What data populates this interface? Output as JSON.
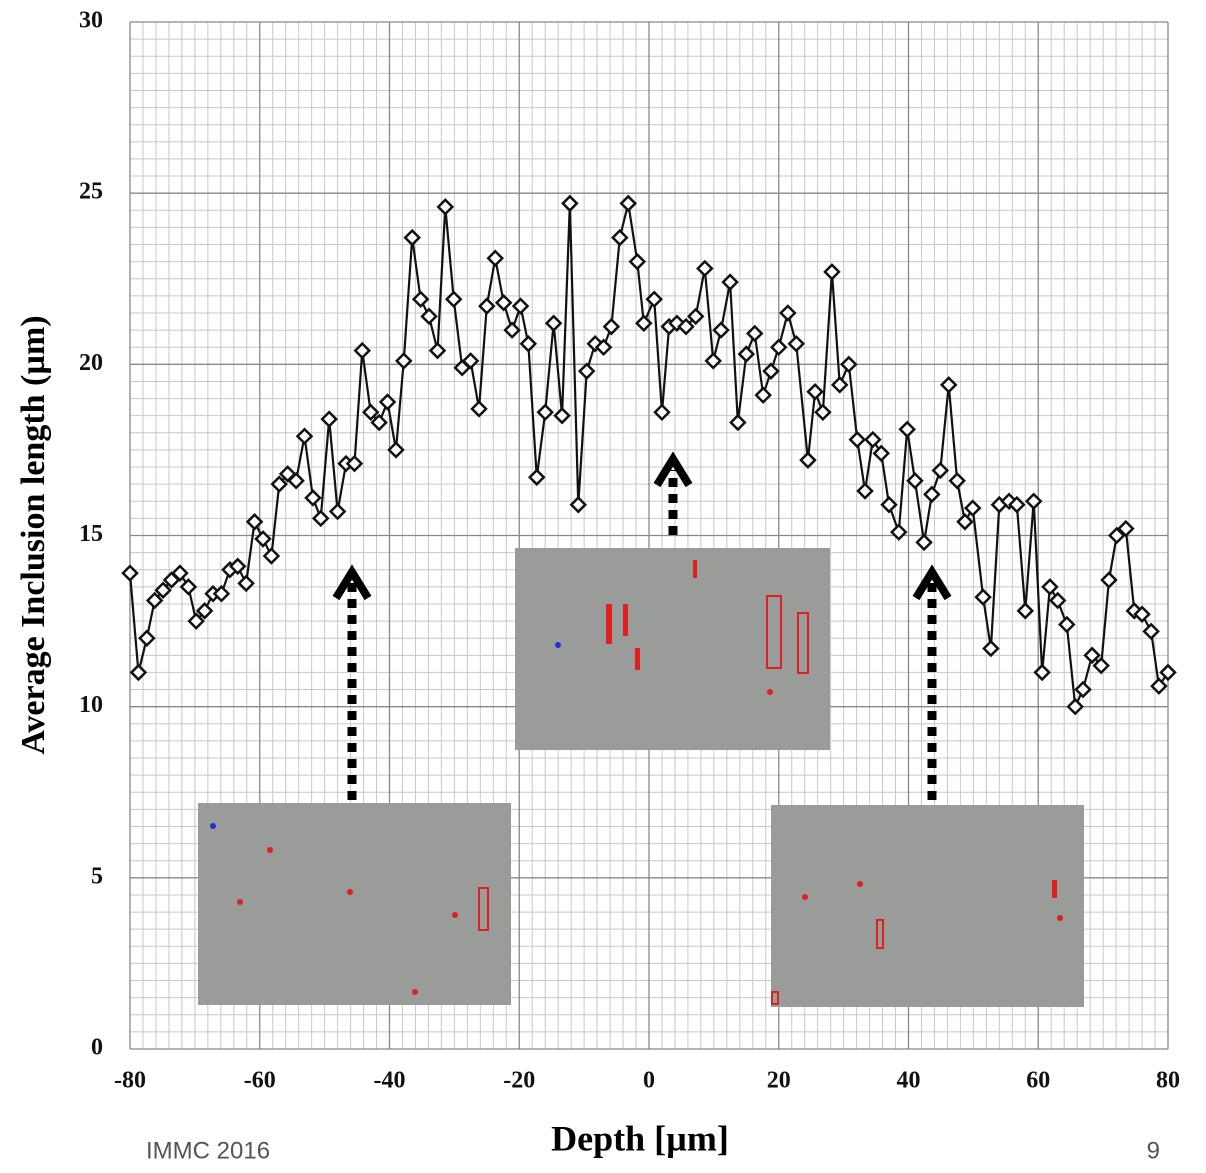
{
  "chart_data": {
    "type": "line",
    "xlabel": "Depth [µm]",
    "ylabel": "Average Inclusion length (µm)",
    "x": [
      -80,
      -78.7,
      -77.4,
      -76.2,
      -74.9,
      -73.6,
      -72.3,
      -71.0,
      -69.8,
      -68.5,
      -67.2,
      -65.9,
      -64.6,
      -63.4,
      -62.1,
      -60.8,
      -59.5,
      -58.2,
      -57.0,
      -55.7,
      -54.4,
      -53.1,
      -51.8,
      -50.6,
      -49.3,
      -48.0,
      -46.7,
      -45.4,
      -44.2,
      -42.9,
      -41.6,
      -40.3,
      -39.0,
      -37.8,
      -36.5,
      -35.2,
      -33.9,
      -32.6,
      -31.4,
      -30.1,
      -28.8,
      -27.5,
      -26.2,
      -25.0,
      -23.7,
      -22.4,
      -21.1,
      -19.8,
      -18.6,
      -17.3,
      -16.0,
      -14.7,
      -13.4,
      -12.2,
      -10.9,
      -9.6,
      -8.3,
      -7.0,
      -5.8,
      -4.5,
      -3.2,
      -1.8,
      -0.8,
      0.8,
      2.0,
      3.1,
      4.3,
      5.7,
      7.2,
      8.6,
      9.9,
      11.1,
      12.5,
      13.7,
      15.0,
      16.3,
      17.6,
      18.8,
      20.0,
      21.4,
      22.7,
      24.5,
      25.6,
      26.8,
      28.2,
      29.4,
      30.8,
      32.1,
      33.3,
      34.5,
      35.8,
      37.0,
      38.5,
      39.8,
      41.0,
      42.4,
      43.6,
      44.9,
      46.2,
      47.5,
      48.7,
      49.9,
      51.5,
      52.7,
      54.0,
      55.5,
      56.7,
      58.0,
      59.3,
      60.6,
      61.8,
      63.0,
      64.4,
      65.7,
      66.9,
      68.3,
      69.7,
      70.9,
      72.1,
      73.5,
      74.8,
      76.0,
      77.4,
      78.6,
      80.0
    ],
    "series": [
      {
        "color": "#111111",
        "values": [
          13.9,
          11.0,
          12.0,
          13.1,
          13.4,
          13.7,
          13.9,
          13.5,
          12.5,
          12.8,
          13.3,
          13.3,
          14.0,
          14.1,
          13.6,
          15.4,
          14.9,
          14.4,
          16.5,
          16.8,
          16.6,
          17.9,
          16.1,
          15.5,
          18.4,
          15.7,
          17.1,
          17.1,
          20.4,
          18.6,
          18.3,
          18.9,
          17.5,
          20.1,
          23.7,
          21.9,
          21.4,
          20.4,
          24.6,
          21.9,
          19.9,
          20.1,
          18.7,
          21.7,
          23.1,
          21.8,
          21.0,
          21.7,
          20.6,
          16.7,
          18.6,
          21.2,
          18.5,
          24.7,
          15.9,
          19.8,
          20.6,
          20.5,
          21.1,
          23.7,
          24.7,
          23.0,
          21.2,
          21.9,
          18.6,
          21.1,
          21.2,
          21.1,
          21.4,
          22.8,
          20.1,
          21.0,
          22.4,
          18.3,
          20.3,
          20.9,
          19.1,
          19.8,
          20.5,
          21.5,
          20.6,
          17.2,
          19.2,
          18.6,
          22.7,
          19.4,
          20.0,
          17.8,
          16.3,
          17.8,
          17.4,
          15.9,
          15.1,
          18.1,
          16.6,
          14.8,
          16.2,
          16.9,
          19.4,
          16.6,
          15.4,
          15.8,
          13.2,
          11.7,
          15.9,
          16.0,
          15.9,
          12.8,
          16.0,
          11.0,
          13.5,
          13.1,
          12.4,
          10.0,
          10.5,
          11.5,
          11.2,
          13.7,
          15.0,
          15.2,
          12.8,
          12.7,
          12.2,
          10.6,
          11.0
        ]
      }
    ],
    "xlim": [
      -80,
      80
    ],
    "xticks": [
      -80,
      -60,
      -40,
      -20,
      0,
      20,
      40,
      60,
      80
    ],
    "ylim": [
      0,
      30
    ],
    "yticks": [
      0,
      5,
      10,
      15,
      20,
      25,
      30
    ],
    "grid": true,
    "minor_divisions": 10
  },
  "footer": {
    "event": "IMMC 2016",
    "page": "9"
  }
}
